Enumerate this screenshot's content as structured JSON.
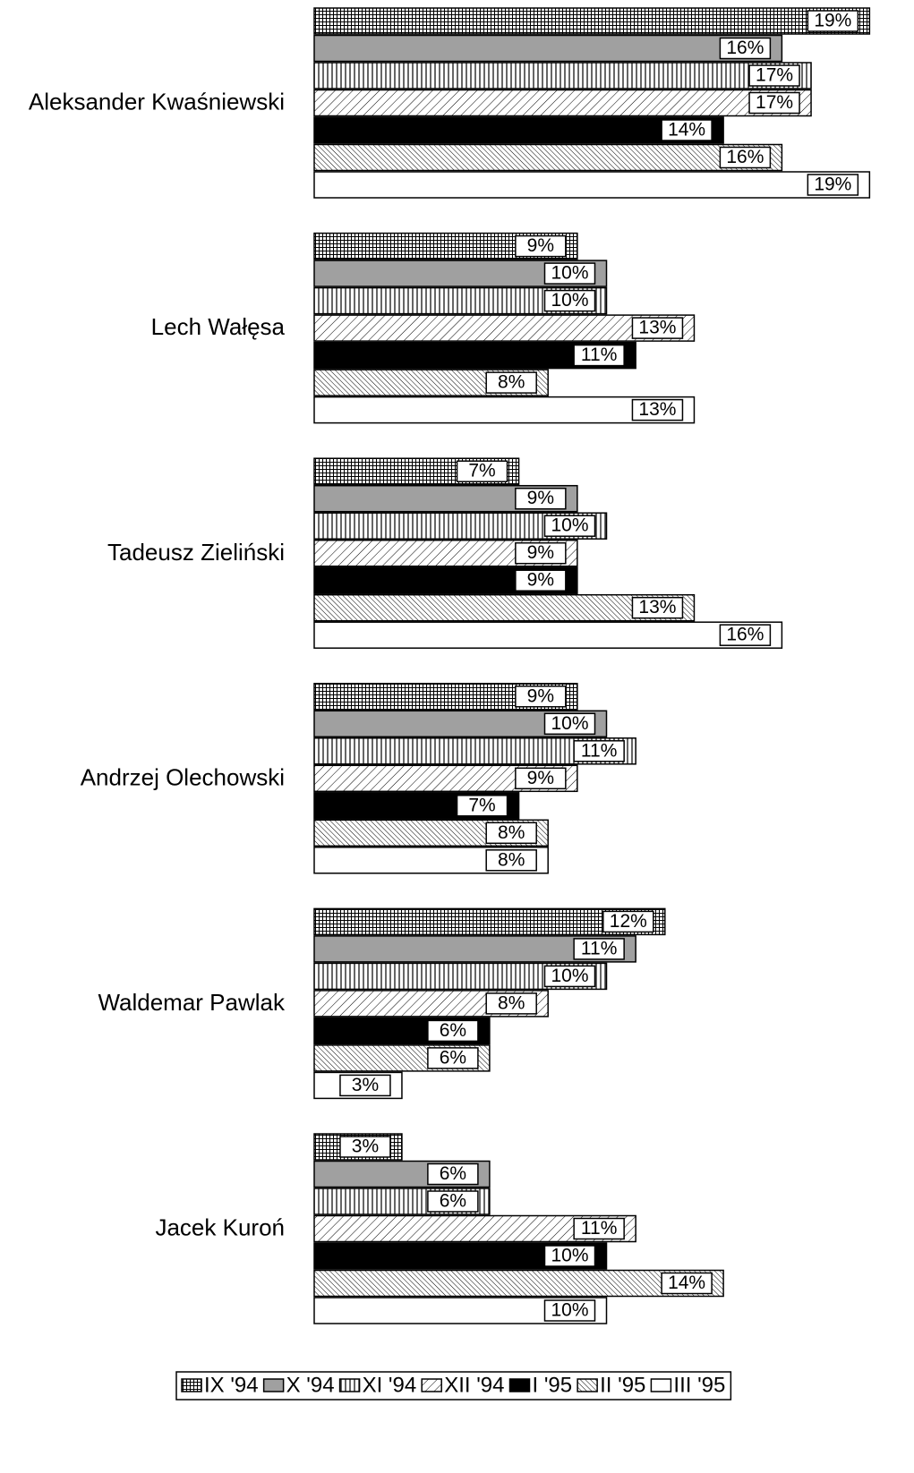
{
  "chart_data": {
    "type": "hbar",
    "categories": [
      "Aleksander Kwaśniewski",
      "Lech Wałęsa",
      "Tadeusz Zieliński",
      "Andrzej Olechowski",
      "Waldemar Pawlak",
      "Jacek Kuroń"
    ],
    "series": [
      {
        "name": "IX '94",
        "color": "#000000",
        "pattern": "grid",
        "values": [
          19,
          9,
          7,
          9,
          12,
          3
        ],
        "value_labels": [
          "19%",
          "9%",
          "7%",
          "9%",
          "12%",
          "3%"
        ]
      },
      {
        "name": "X '94",
        "color": "#a0a0a0",
        "pattern": "solid",
        "values": [
          16,
          10,
          9,
          10,
          11,
          6
        ],
        "value_labels": [
          "16%",
          "10%",
          "9%",
          "10%",
          "11%",
          "6%"
        ]
      },
      {
        "name": "XI '94",
        "color": "#000000",
        "pattern": "vertical",
        "values": [
          17,
          10,
          10,
          11,
          10,
          6
        ],
        "value_labels": [
          "17%",
          "10%",
          "10%",
          "11%",
          "10%",
          "6%"
        ]
      },
      {
        "name": "XII '94",
        "color": "#000000",
        "pattern": "diagonal",
        "values": [
          17,
          13,
          9,
          9,
          8,
          11
        ],
        "value_labels": [
          "17%",
          "13%",
          "9%",
          "9%",
          "8%",
          "11%"
        ]
      },
      {
        "name": "I '95",
        "color": "#000000",
        "pattern": "solid",
        "values": [
          14,
          11,
          9,
          7,
          6,
          10
        ],
        "value_labels": [
          "14%",
          "11%",
          "9%",
          "7%",
          "6%",
          "10%"
        ]
      },
      {
        "name": "II '95",
        "color": "#000000",
        "pattern": "backdiagonal",
        "values": [
          16,
          8,
          13,
          8,
          6,
          14
        ],
        "value_labels": [
          "16%",
          "8%",
          "13%",
          "8%",
          "6%",
          "14%"
        ]
      },
      {
        "name": "III '95",
        "color": "#ffffff",
        "pattern": "solid",
        "values": [
          19,
          13,
          16,
          8,
          3,
          10
        ],
        "value_labels": [
          "19%",
          "13%",
          "16%",
          "8%",
          "3%",
          "10%"
        ]
      }
    ],
    "legend": "bottom"
  }
}
